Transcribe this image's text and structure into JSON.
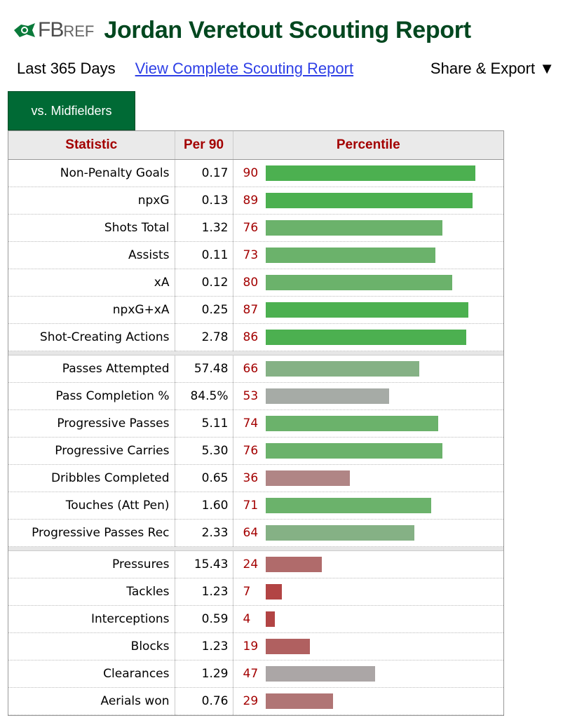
{
  "header": {
    "logo_main": "FB",
    "logo_ref": "REF",
    "title": "Jordan Veretout Scouting Report"
  },
  "subbar": {
    "range": "Last 365 Days",
    "complete_link": "View Complete Scouting Report",
    "share": "Share & Export ▼"
  },
  "tab": {
    "label": "vs. Midfielders"
  },
  "columns": {
    "stat": "Statistic",
    "per90": "Per 90",
    "percentile": "Percentile"
  },
  "colors": {
    "high": "#4cb050",
    "good": "#6bb26b",
    "mid": "#a6aba6",
    "low": "#b08080",
    "bad": "#b24444",
    "brand": "#006a35"
  },
  "groups": [
    [
      {
        "stat": "Non-Penalty Goals",
        "per90": "0.17",
        "pct": 90,
        "color": "#4cb050"
      },
      {
        "stat": "npxG",
        "per90": "0.13",
        "pct": 89,
        "color": "#4cb050"
      },
      {
        "stat": "Shots Total",
        "per90": "1.32",
        "pct": 76,
        "color": "#6bb26b"
      },
      {
        "stat": "Assists",
        "per90": "0.11",
        "pct": 73,
        "color": "#6bb26b"
      },
      {
        "stat": "xA",
        "per90": "0.12",
        "pct": 80,
        "color": "#6bb26b"
      },
      {
        "stat": "npxG+xA",
        "per90": "0.25",
        "pct": 87,
        "color": "#4cb050"
      },
      {
        "stat": "Shot-Creating Actions",
        "per90": "2.78",
        "pct": 86,
        "color": "#4cb050"
      }
    ],
    [
      {
        "stat": "Passes Attempted",
        "per90": "57.48",
        "pct": 66,
        "color": "#85b185"
      },
      {
        "stat": "Pass Completion %",
        "per90": "84.5%",
        "pct": 53,
        "color": "#a6aba6"
      },
      {
        "stat": "Progressive Passes",
        "per90": "5.11",
        "pct": 74,
        "color": "#6bb26b"
      },
      {
        "stat": "Progressive Carries",
        "per90": "5.30",
        "pct": 76,
        "color": "#6bb26b"
      },
      {
        "stat": "Dribbles Completed",
        "per90": "0.65",
        "pct": 36,
        "color": "#b08585"
      },
      {
        "stat": "Touches (Att Pen)",
        "per90": "1.60",
        "pct": 71,
        "color": "#6bb26b"
      },
      {
        "stat": "Progressive Passes Rec",
        "per90": "2.33",
        "pct": 64,
        "color": "#85b185"
      }
    ],
    [
      {
        "stat": "Pressures",
        "per90": "15.43",
        "pct": 24,
        "color": "#b06b6b"
      },
      {
        "stat": "Tackles",
        "per90": "1.23",
        "pct": 7,
        "color": "#b24444"
      },
      {
        "stat": "Interceptions",
        "per90": "0.59",
        "pct": 4,
        "color": "#b24444"
      },
      {
        "stat": "Blocks",
        "per90": "1.23",
        "pct": 19,
        "color": "#b06060"
      },
      {
        "stat": "Clearances",
        "per90": "1.29",
        "pct": 47,
        "color": "#aba6a6"
      },
      {
        "stat": "Aerials won",
        "per90": "0.76",
        "pct": 29,
        "color": "#b07575"
      }
    ]
  ]
}
